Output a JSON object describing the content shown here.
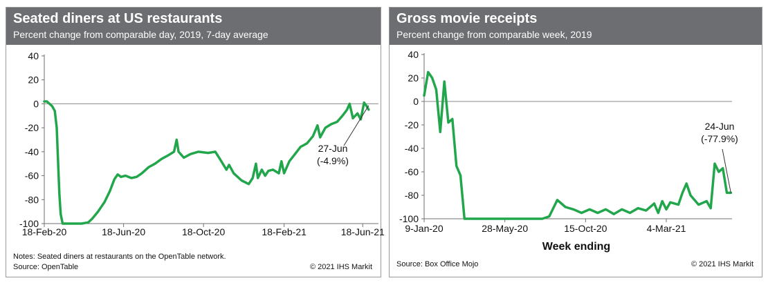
{
  "chart_data": [
    {
      "type": "line",
      "title": "Seated diners at US restaurants",
      "subtitle": "Percent change from comparable day, 2019, 7-day average",
      "xlabel": "",
      "ylabel": "",
      "ylim": [
        -100,
        40
      ],
      "yticks": [
        40,
        20,
        0,
        -20,
        -40,
        -60,
        -80,
        -100
      ],
      "xticks": [
        "18-Feb-20",
        "18-Jun-20",
        "18-Oct-20",
        "18-Feb-21",
        "18-Jun-21"
      ],
      "x_start": "2020-02-18",
      "x_end": "2021-06-27",
      "series": [
        {
          "name": "Seated diners",
          "color": "#22a64c",
          "points": [
            [
              "2020-02-18",
              2
            ],
            [
              "2020-02-22",
              2
            ],
            [
              "2020-02-26",
              0
            ],
            [
              "2020-03-01",
              -2
            ],
            [
              "2020-03-05",
              -6
            ],
            [
              "2020-03-08",
              -20
            ],
            [
              "2020-03-10",
              -48
            ],
            [
              "2020-03-12",
              -75
            ],
            [
              "2020-03-14",
              -92
            ],
            [
              "2020-03-17",
              -100
            ],
            [
              "2020-04-01",
              -100
            ],
            [
              "2020-04-15",
              -100
            ],
            [
              "2020-04-25",
              -99
            ],
            [
              "2020-05-01",
              -96
            ],
            [
              "2020-05-10",
              -90
            ],
            [
              "2020-05-20",
              -82
            ],
            [
              "2020-05-28",
              -73
            ],
            [
              "2020-06-04",
              -63
            ],
            [
              "2020-06-09",
              -59
            ],
            [
              "2020-06-14",
              -61
            ],
            [
              "2020-06-21",
              -60
            ],
            [
              "2020-06-30",
              -62
            ],
            [
              "2020-07-08",
              -61
            ],
            [
              "2020-07-16",
              -58
            ],
            [
              "2020-07-26",
              -53
            ],
            [
              "2020-08-05",
              -50
            ],
            [
              "2020-08-15",
              -46
            ],
            [
              "2020-08-25",
              -43
            ],
            [
              "2020-09-03",
              -40
            ],
            [
              "2020-09-07",
              -30
            ],
            [
              "2020-09-10",
              -40
            ],
            [
              "2020-09-18",
              -45
            ],
            [
              "2020-09-28",
              -42
            ],
            [
              "2020-10-10",
              -40
            ],
            [
              "2020-10-25",
              -41
            ],
            [
              "2020-11-05",
              -40
            ],
            [
              "2020-11-12",
              -46
            ],
            [
              "2020-11-22",
              -55
            ],
            [
              "2020-11-26",
              -51
            ],
            [
              "2020-12-03",
              -58
            ],
            [
              "2020-12-15",
              -64
            ],
            [
              "2020-12-26",
              -67
            ],
            [
              "2021-01-01",
              -62
            ],
            [
              "2021-01-06",
              -50
            ],
            [
              "2021-01-09",
              -62
            ],
            [
              "2021-01-15",
              -55
            ],
            [
              "2021-01-20",
              -60
            ],
            [
              "2021-01-25",
              -56
            ],
            [
              "2021-02-01",
              -55
            ],
            [
              "2021-02-10",
              -58
            ],
            [
              "2021-02-14",
              -48
            ],
            [
              "2021-02-18",
              -58
            ],
            [
              "2021-02-26",
              -48
            ],
            [
              "2021-03-08",
              -41
            ],
            [
              "2021-03-15",
              -36
            ],
            [
              "2021-03-25",
              -33
            ],
            [
              "2021-04-03",
              -27
            ],
            [
              "2021-04-10",
              -18
            ],
            [
              "2021-04-14",
              -28
            ],
            [
              "2021-04-22",
              -20
            ],
            [
              "2021-05-01",
              -17
            ],
            [
              "2021-05-10",
              -15
            ],
            [
              "2021-05-18",
              -10
            ],
            [
              "2021-05-25",
              -5
            ],
            [
              "2021-05-29",
              0
            ],
            [
              "2021-06-03",
              -12
            ],
            [
              "2021-06-10",
              -8
            ],
            [
              "2021-06-15",
              -13
            ],
            [
              "2021-06-20",
              1
            ],
            [
              "2021-06-24",
              -2
            ],
            [
              "2021-06-27",
              -4.9
            ]
          ]
        }
      ],
      "annotation": {
        "line1": "27-Jun",
        "line2": "(-4.9%)",
        "date": "2021-06-27",
        "value": -4.9
      },
      "note": "Notes: Seated diners at restaurants on the OpenTable network.",
      "source": "Source: OpenTable",
      "copyright": "© 2021 IHS Markit"
    },
    {
      "type": "line",
      "title": "Gross movie receipts",
      "subtitle": "Percent change from comparable week, 2019",
      "xlabel": "Week ending",
      "ylabel": "",
      "ylim": [
        -100,
        40
      ],
      "yticks": [
        40,
        20,
        0,
        -20,
        -40,
        -60,
        -80,
        -100
      ],
      "xticks": [
        "9-Jan-20",
        "28-May-20",
        "15-Oct-20",
        "4-Mar-21"
      ],
      "x_start": "2020-01-09",
      "x_end": "2021-06-24",
      "series": [
        {
          "name": "Gross movie receipts",
          "color": "#22a64c",
          "points": [
            [
              "2020-01-09",
              5
            ],
            [
              "2020-01-16",
              25
            ],
            [
              "2020-01-23",
              20
            ],
            [
              "2020-01-30",
              10
            ],
            [
              "2020-02-06",
              -26
            ],
            [
              "2020-02-13",
              17
            ],
            [
              "2020-02-20",
              -18
            ],
            [
              "2020-02-27",
              -15
            ],
            [
              "2020-03-05",
              -55
            ],
            [
              "2020-03-12",
              -63
            ],
            [
              "2020-03-19",
              -100
            ],
            [
              "2020-04-15",
              -100
            ],
            [
              "2020-05-15",
              -100
            ],
            [
              "2020-06-15",
              -100
            ],
            [
              "2020-07-15",
              -100
            ],
            [
              "2020-08-01",
              -100
            ],
            [
              "2020-08-13",
              -98
            ],
            [
              "2020-08-27",
              -84
            ],
            [
              "2020-09-10",
              -90
            ],
            [
              "2020-09-24",
              -92
            ],
            [
              "2020-10-08",
              -95
            ],
            [
              "2020-10-22",
              -92
            ],
            [
              "2020-11-05",
              -95
            ],
            [
              "2020-11-19",
              -92
            ],
            [
              "2020-12-03",
              -96
            ],
            [
              "2020-12-17",
              -92
            ],
            [
              "2020-12-31",
              -95
            ],
            [
              "2021-01-14",
              -91
            ],
            [
              "2021-01-28",
              -93
            ],
            [
              "2021-02-11",
              -87
            ],
            [
              "2021-02-18",
              -95
            ],
            [
              "2021-02-25",
              -85
            ],
            [
              "2021-03-04",
              -92
            ],
            [
              "2021-03-11",
              -86
            ],
            [
              "2021-03-25",
              -88
            ],
            [
              "2021-04-01",
              -78
            ],
            [
              "2021-04-08",
              -70
            ],
            [
              "2021-04-15",
              -80
            ],
            [
              "2021-04-29",
              -88
            ],
            [
              "2021-05-13",
              -85
            ],
            [
              "2021-05-20",
              -91
            ],
            [
              "2021-05-27",
              -53
            ],
            [
              "2021-06-03",
              -60
            ],
            [
              "2021-06-10",
              -57
            ],
            [
              "2021-06-17",
              -77.9
            ],
            [
              "2021-06-24",
              -77.9
            ]
          ]
        }
      ],
      "annotation": {
        "line1": "24-Jun",
        "line2": "(-77.9%)",
        "date": "2021-06-24",
        "value": -77.9
      },
      "note": "",
      "source": "Source: Box Office Mojo",
      "copyright": "© 2021 IHS Markit"
    }
  ]
}
